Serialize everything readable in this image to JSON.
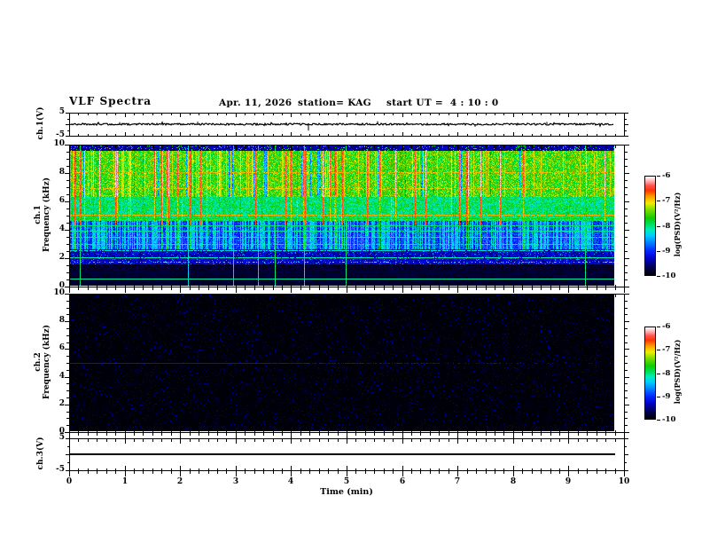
{
  "title": {
    "main": "VLF Spectra",
    "date": "Apr. 11, 2026",
    "station": "station= KAG",
    "start_ut": "start UT =  4 : 10 : 0"
  },
  "x_axis": {
    "label": "Time (min)",
    "min": 0,
    "max": 10,
    "tick_labels": [
      "0",
      "1",
      "2",
      "3",
      "4",
      "5",
      "6",
      "7",
      "8",
      "9",
      "10"
    ],
    "minor_per_major": 6
  },
  "panels": {
    "ch1v": {
      "ylabel": "ch.1(V)",
      "ymin": -5,
      "ymax": 5,
      "ytick_vals": [
        5,
        -5
      ],
      "ytick_labels": [
        "5",
        "-5"
      ]
    },
    "spec1": {
      "ylabel_line1": "ch.1",
      "ylabel_line2": "Frequency (kHz)",
      "fmin": 0,
      "fmax": 10,
      "ytick_vals": [
        10,
        8,
        6,
        4,
        2,
        0
      ],
      "ytick_labels": [
        "10",
        "8",
        "6",
        "4",
        "2",
        "0"
      ]
    },
    "spec2": {
      "ylabel_line1": "ch.2",
      "ylabel_line2": "Frequency (kHz)",
      "fmin": 0,
      "fmax": 10,
      "ytick_vals": [
        10,
        8,
        6,
        4,
        2,
        0
      ],
      "ytick_labels": [
        "10",
        "8",
        "6",
        "4",
        "2",
        "0"
      ]
    },
    "ch3v": {
      "ylabel": "ch.3(V)",
      "ymin": -5,
      "ymax": 5,
      "ytick_vals": [
        5,
        -5
      ],
      "ytick_labels": [
        "5",
        "-5"
      ]
    }
  },
  "colorbar": {
    "label": "log(PSD)(V²/Hz)",
    "tick_labels": [
      "-6",
      "-7",
      "-8",
      "-9",
      "-10"
    ],
    "zmax": -6,
    "zmin": -10
  },
  "chart_data": {
    "colormap": {
      "note": "normalized value 0 (= -10, black) to 1 (= -6, white)",
      "stops": [
        [
          0.0,
          "#000000"
        ],
        [
          0.08,
          "#000055"
        ],
        [
          0.16,
          "#0000bb"
        ],
        [
          0.24,
          "#0022ff"
        ],
        [
          0.32,
          "#0077ff"
        ],
        [
          0.4,
          "#00ccff"
        ],
        [
          0.46,
          "#00eebb"
        ],
        [
          0.52,
          "#00dd55"
        ],
        [
          0.58,
          "#11cc00"
        ],
        [
          0.66,
          "#77dd00"
        ],
        [
          0.73,
          "#eeee00"
        ],
        [
          0.8,
          "#ff9900"
        ],
        [
          0.86,
          "#ff3300"
        ],
        [
          0.91,
          "#ff5555"
        ],
        [
          0.95,
          "#ffaaaa"
        ],
        [
          1.0,
          "#ffffff"
        ]
      ]
    },
    "series": [
      {
        "type": "line",
        "name": "ch.1 voltage waveform",
        "x_range_min": [
          0,
          9.82
        ],
        "y_range_V": [
          -5,
          5
        ],
        "baseline_V": 0,
        "noise_V": 0.45,
        "spikes": [
          {
            "t_min": 0.9,
            "amp_V": 1.0
          },
          {
            "t_min": 2.3,
            "amp_V": 1.2
          },
          {
            "t_min": 4.3,
            "amp_V": -3.0
          },
          {
            "t_min": 5.55,
            "amp_V": 1.4
          },
          {
            "t_min": 7.3,
            "amp_V": -1.2
          },
          {
            "t_min": 8.6,
            "amp_V": 1.1
          }
        ]
      },
      {
        "type": "heatmap",
        "name": "ch.1 spectrogram",
        "x_range_min": [
          0,
          9.82
        ],
        "f_range_kHz": [
          0,
          10
        ],
        "z_label": "log(PSD)(V²/Hz)",
        "z_range": [
          -10,
          -6
        ],
        "bands": [
          {
            "f_kHz": [
              9.62,
              10.0
            ],
            "level": 0.13,
            "desc": "dark blue-black top edge with green speckle"
          },
          {
            "f_kHz": [
              6.3,
              9.62
            ],
            "level": 0.62,
            "desc": "bright green-yellow, dense red/white vertical bursts"
          },
          {
            "f_kHz": [
              4.6,
              6.3
            ],
            "level": 0.5,
            "desc": "green-cyan"
          },
          {
            "f_kHz": [
              2.6,
              4.6
            ],
            "level": 0.28,
            "desc": "blue-cyan vertical striations"
          },
          {
            "f_kHz": [
              1.55,
              2.6
            ],
            "level": 0.16,
            "desc": "dark blue"
          },
          {
            "f_kHz": [
              0.0,
              1.55
            ],
            "level": 0.04,
            "desc": "black"
          }
        ],
        "h_lines": [
          {
            "f_kHz": 8.1,
            "level": 0.8,
            "prob": 0.55
          },
          {
            "f_kHz": 6.9,
            "level": 0.78,
            "prob": 0.45
          },
          {
            "f_kHz": 5.6,
            "level": 0.62,
            "prob": 0.8
          },
          {
            "f_kHz": 5.05,
            "level": 0.82,
            "prob": 0.85
          },
          {
            "f_kHz": 4.75,
            "level": 0.58,
            "prob": 0.7
          },
          {
            "f_kHz": 4.3,
            "level": 0.52,
            "prob": 0.95
          },
          {
            "f_kHz": 3.9,
            "level": 0.49,
            "prob": 0.85
          },
          {
            "f_kHz": 3.45,
            "level": 0.46,
            "prob": 0.85
          },
          {
            "f_kHz": 2.95,
            "level": 0.44,
            "prob": 0.8
          },
          {
            "f_kHz": 2.5,
            "level": 0.46,
            "prob": 0.85
          },
          {
            "f_kHz": 2.0,
            "level": 0.5,
            "prob": 0.95
          },
          {
            "f_kHz": 1.7,
            "level": 0.76,
            "prob": 0.3
          },
          {
            "f_kHz": 0.45,
            "level": 0.53,
            "prob": 1.0
          }
        ],
        "v_line_prob": 0.02,
        "burst_threshold": 0.9
      },
      {
        "type": "heatmap",
        "name": "ch.2 spectrogram",
        "x_range_min": [
          0,
          9.82
        ],
        "f_range_kHz": [
          0,
          10
        ],
        "z_label": "log(PSD)(V²/Hz)",
        "z_range": [
          -10,
          -6
        ],
        "background_level": 0.02,
        "h_line": {
          "f_kHz": 5.0,
          "level": 0.2,
          "solid_until_min": 3.4,
          "fades_out_by_min": 9.0
        },
        "desc": "no signal: black panel with faint blue line at 5 kHz"
      },
      {
        "type": "line",
        "name": "ch.3 voltage waveform",
        "x_range_min": [
          0,
          9.82
        ],
        "y_range_V": [
          -5,
          5
        ],
        "baseline_V": 0,
        "noise_V": 0,
        "desc": "perfectly flat line at 0 V"
      }
    ]
  }
}
